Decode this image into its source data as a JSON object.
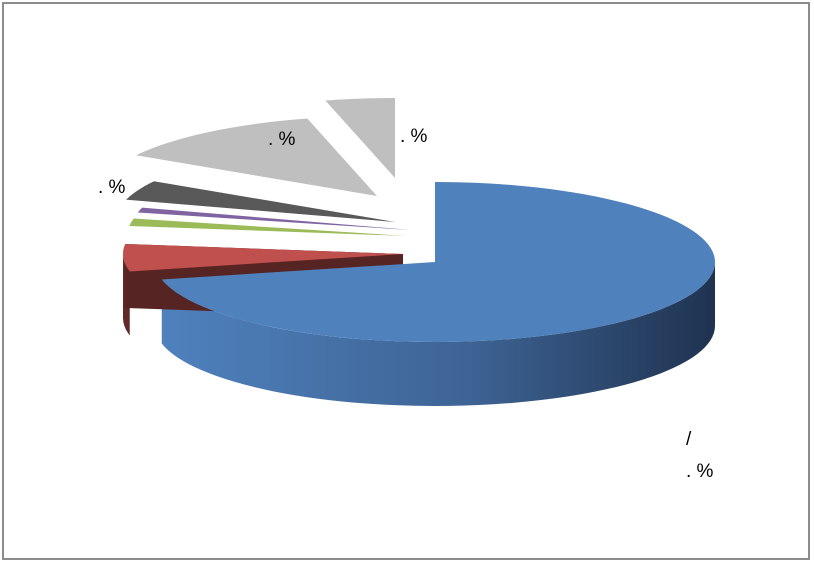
{
  "chart_data": {
    "type": "pie",
    "style": "3d-exploded",
    "grid": false,
    "legend": "none",
    "slices": [
      {
        "value": 71.5,
        "color": "#4F81BD",
        "label_line1": "/",
        "label_line2": ".  %"
      },
      {
        "value": 5.5,
        "color": "#C0504D",
        "label_line1": "",
        "label_line2": ".  %"
      },
      {
        "value": 1.5,
        "color": "#9BBB59",
        "label_line1": "",
        "label_line2": ""
      },
      {
        "value": 1.0,
        "color": "#8064A2",
        "label_line1": "",
        "label_line2": ""
      },
      {
        "value": 4.0,
        "color": "#595959",
        "label_line1": "",
        "label_line2": ""
      },
      {
        "value": 12.5,
        "color": "#BFBFBF",
        "label_line1": "",
        "label_line2": ".  %"
      },
      {
        "value": 4.0,
        "color": "#BFBFBF",
        "label_line1": "",
        "label_line2": ".  %"
      }
    ]
  }
}
